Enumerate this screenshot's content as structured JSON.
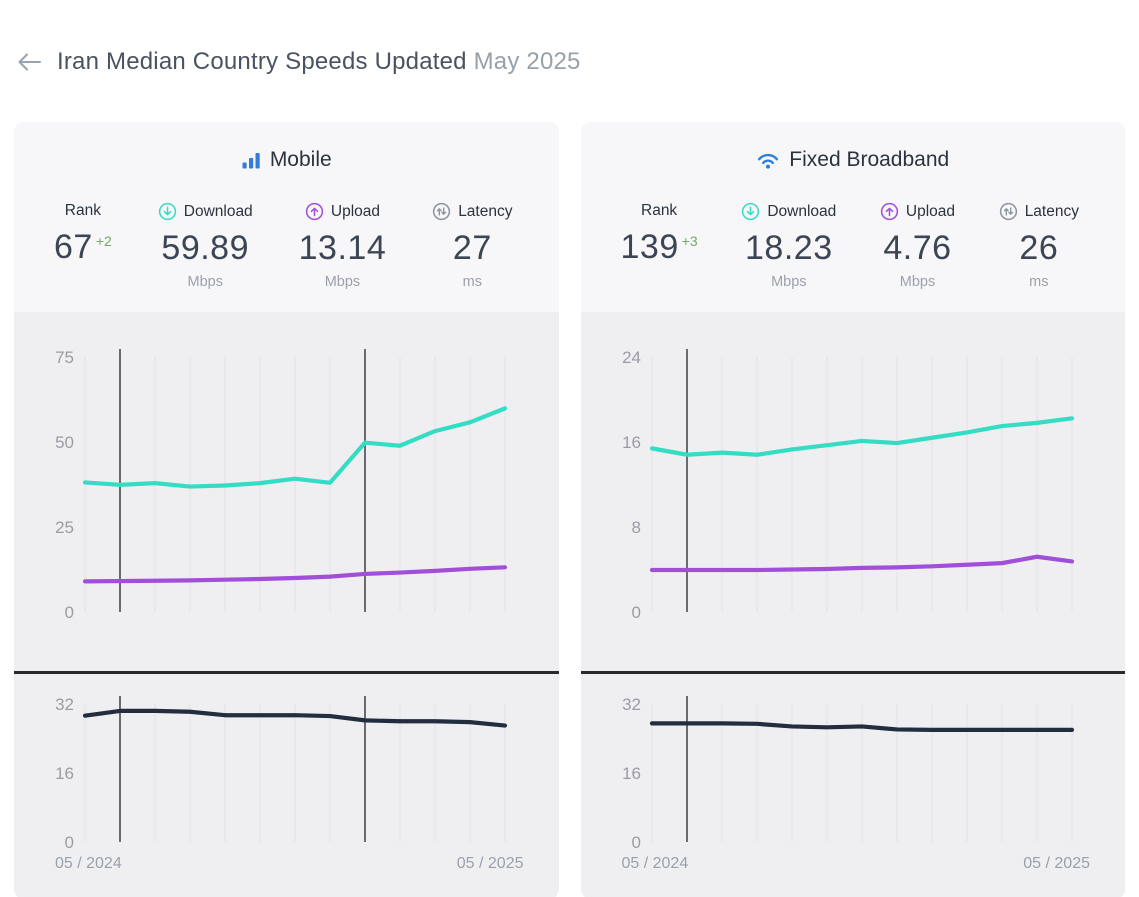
{
  "header": {
    "back_icon": "arrow-left",
    "title": "Iran Median Country Speeds Updated",
    "date": "May 2025"
  },
  "colors": {
    "brand_blue": "#2f7ed8",
    "download_teal": "#35dcc4",
    "upload_purple": "#a14fd8",
    "latency_navy": "#222e40",
    "rank_delta_green": "#79a760",
    "gridline": "#e3e2e7",
    "marker_line": "#6a6b70",
    "axis_label": "#9b9ba4"
  },
  "cards": [
    {
      "title": "Mobile",
      "title_icon": "bar-chart-icon",
      "stats": [
        {
          "label": "Rank",
          "value": "67",
          "delta": "+2"
        },
        {
          "label": "Download",
          "value": "59.89",
          "unit": "Mbps",
          "icon": "download-circle-icon"
        },
        {
          "label": "Upload",
          "value": "13.14",
          "unit": "Mbps",
          "icon": "upload-circle-icon"
        },
        {
          "label": "Latency",
          "value": "27",
          "unit": "ms",
          "icon": "latency-circle-icon"
        }
      ],
      "chart_data": {
        "type": "line",
        "x_labels": [
          "05 / 2024",
          "05 / 2025"
        ],
        "n_points": 13,
        "marker_indices": [
          1,
          8
        ],
        "grid": true,
        "legend": "none",
        "speed": {
          "ylim": [
            0,
            75
          ],
          "yticks": [
            75,
            50,
            25,
            0
          ],
          "series": [
            {
              "name": "download",
              "color": "#35dcc4",
              "values": [
                38.1,
                37.4,
                37.9,
                36.9,
                37.2,
                37.9,
                39.2,
                38.0,
                49.8,
                48.9,
                53.2,
                55.8,
                59.89
              ]
            },
            {
              "name": "upload",
              "color": "#a14fd8",
              "values": [
                9.0,
                9.1,
                9.2,
                9.3,
                9.5,
                9.7,
                10.0,
                10.4,
                11.2,
                11.6,
                12.1,
                12.7,
                13.14
              ]
            }
          ]
        },
        "latency": {
          "ylim": [
            0,
            32
          ],
          "yticks": [
            32,
            16,
            0
          ],
          "series": [
            {
              "name": "latency",
              "color": "#222e40",
              "values": [
                29.3,
                30.4,
                30.4,
                30.2,
                29.4,
                29.4,
                29.4,
                29.2,
                28.2,
                28.0,
                28.0,
                27.8,
                27.0
              ]
            }
          ]
        }
      }
    },
    {
      "title": "Fixed Broadband",
      "title_icon": "wifi-icon",
      "stats": [
        {
          "label": "Rank",
          "value": "139",
          "delta": "+3"
        },
        {
          "label": "Download",
          "value": "18.23",
          "unit": "Mbps",
          "icon": "download-circle-icon"
        },
        {
          "label": "Upload",
          "value": "4.76",
          "unit": "Mbps",
          "icon": "upload-circle-icon"
        },
        {
          "label": "Latency",
          "value": "26",
          "unit": "ms",
          "icon": "latency-circle-icon"
        }
      ],
      "chart_data": {
        "type": "line",
        "x_labels": [
          "05 / 2024",
          "05 / 2025"
        ],
        "n_points": 13,
        "marker_indices": [
          1
        ],
        "grid": true,
        "legend": "none",
        "speed": {
          "ylim": [
            0,
            24
          ],
          "yticks": [
            24,
            16,
            8,
            0
          ],
          "series": [
            {
              "name": "download",
              "color": "#35dcc4",
              "values": [
                15.4,
                14.8,
                15.0,
                14.8,
                15.3,
                15.7,
                16.1,
                15.9,
                16.4,
                16.9,
                17.5,
                17.8,
                18.23
              ]
            },
            {
              "name": "upload",
              "color": "#a14fd8",
              "values": [
                3.95,
                3.95,
                3.95,
                3.95,
                4.0,
                4.05,
                4.15,
                4.2,
                4.3,
                4.45,
                4.6,
                5.2,
                4.76
              ]
            }
          ]
        },
        "latency": {
          "ylim": [
            0,
            32
          ],
          "yticks": [
            32,
            16,
            0
          ],
          "series": [
            {
              "name": "latency",
              "color": "#222e40",
              "values": [
                27.5,
                27.5,
                27.5,
                27.4,
                26.8,
                26.6,
                26.8,
                26.1,
                26.0,
                26.0,
                26.0,
                26.0,
                26.0
              ]
            }
          ]
        }
      }
    }
  ]
}
